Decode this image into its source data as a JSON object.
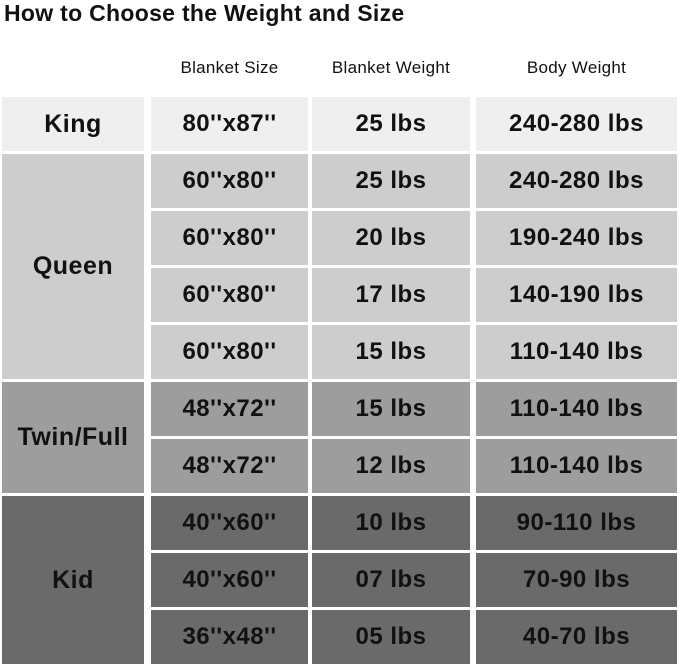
{
  "title": "How to Choose the Weight and Size",
  "headers": [
    "Blanket Size",
    "Blanket Weight",
    "Body Weight"
  ],
  "colors": {
    "King": "#efefef",
    "Queen": "#cdcdcd",
    "Twin/Full": "#9d9d9d",
    "Kid": "#6a6a6a"
  },
  "groups": [
    {
      "name": "King",
      "rows": [
        [
          "80''x87''",
          "25 lbs",
          "240-280 lbs"
        ]
      ]
    },
    {
      "name": "Queen",
      "rows": [
        [
          "60''x80''",
          "25 lbs",
          "240-280 lbs"
        ],
        [
          "60''x80''",
          "20 lbs",
          "190-240 lbs"
        ],
        [
          "60''x80''",
          "17 lbs",
          "140-190 lbs"
        ],
        [
          "60''x80''",
          "15 lbs",
          "110-140 lbs"
        ]
      ]
    },
    {
      "name": "Twin/Full",
      "rows": [
        [
          "48''x72''",
          "15 lbs",
          "110-140 lbs"
        ],
        [
          "48''x72''",
          "12 lbs",
          "110-140 lbs"
        ]
      ]
    },
    {
      "name": "Kid",
      "rows": [
        [
          "40''x60''",
          "10 lbs",
          "90-110 lbs"
        ],
        [
          "40''x60''",
          "07 lbs",
          "70-90 lbs"
        ],
        [
          "36''x48''",
          "05 lbs",
          "40-70 lbs"
        ]
      ]
    }
  ]
}
